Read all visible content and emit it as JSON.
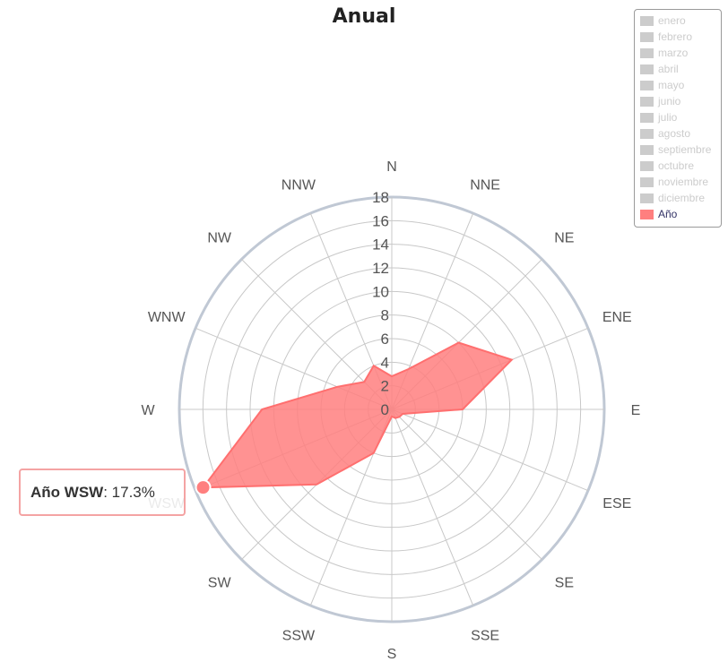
{
  "chart_data": {
    "type": "radar",
    "subtype": "wind-rose-area",
    "title": "Anual",
    "categories": [
      "N",
      "NNE",
      "NE",
      "ENE",
      "E",
      "ESE",
      "SE",
      "SSE",
      "S",
      "SSW",
      "SW",
      "WSW",
      "W",
      "WNW",
      "NW",
      "NNW"
    ],
    "radial_axis": {
      "ticks": [
        "0",
        "2",
        "4",
        "6",
        "8",
        "10",
        "12",
        "14",
        "16",
        "18"
      ],
      "min": 0,
      "max": 18
    },
    "series": [
      {
        "name": "Año",
        "color": "#ff7f7f",
        "values": [
          2.8,
          3.7,
          8.0,
          11.0,
          6.0,
          1.0,
          0.9,
          0.8,
          0.6,
          4.0,
          9.0,
          17.3,
          11.0,
          5.0,
          3.3,
          4.0
        ]
      }
    ],
    "legend": {
      "position": "top-right",
      "items": [
        {
          "label": "enero",
          "active": false
        },
        {
          "label": "febrero",
          "active": false
        },
        {
          "label": "marzo",
          "active": false
        },
        {
          "label": "abril",
          "active": false
        },
        {
          "label": "mayo",
          "active": false
        },
        {
          "label": "junio",
          "active": false
        },
        {
          "label": "julio",
          "active": false
        },
        {
          "label": "agosto",
          "active": false
        },
        {
          "label": "septiembre",
          "active": false
        },
        {
          "label": "octubre",
          "active": false
        },
        {
          "label": "noviembre",
          "active": false
        },
        {
          "label": "diciembre",
          "active": false
        },
        {
          "label": "Año",
          "active": true
        }
      ]
    },
    "tooltip": {
      "series": "Año",
      "category": "WSW",
      "value": "17.3%"
    }
  },
  "colors": {
    "inactive_legend": "#cccccc",
    "active_legend_text": "#333366",
    "series_fill": "#ff7f7f",
    "series_stroke": "#ff6f6f",
    "grid": "#c8c8c8",
    "outer_ring": "#c0c8d4"
  }
}
